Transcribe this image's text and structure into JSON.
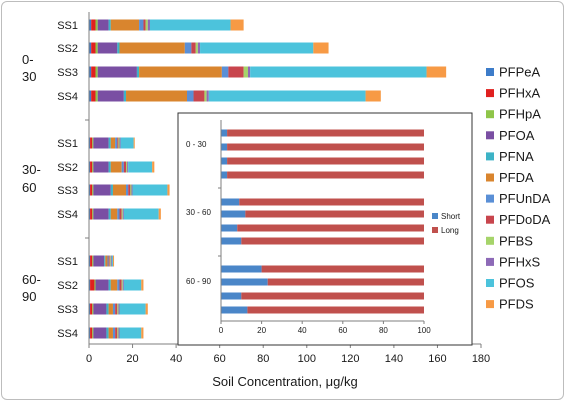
{
  "colors": {
    "PFPeA": "#3d7cc9",
    "PFHxA": "#e0201f",
    "PFHpA": "#8fc549",
    "PFOA": "#7a4fa3",
    "PFNA": "#3db3c6",
    "PFDA": "#d9852e",
    "PFUnDA": "#5a8fd6",
    "PFDoDA": "#c8454d",
    "PFBS": "#a6d46a",
    "PFHxS": "#8d6ab7",
    "PFOS": "#4cc3dc",
    "PFDS": "#f79a45",
    "Short": "#4a86c8",
    "Long": "#c0504d"
  },
  "chart_data": [
    {
      "type": "bar",
      "orientation": "horizontal",
      "stacked": true,
      "xlabel": "Soil Concentration, μg/kg",
      "xlim": [
        0,
        180
      ],
      "xticks": [
        0,
        20,
        40,
        60,
        80,
        100,
        120,
        140,
        160,
        180
      ],
      "grid": false,
      "legend_position": "right",
      "groups": [
        {
          "label": "0-\n30",
          "categories": [
            "SS1",
            "SS2",
            "SS3",
            "SS4"
          ]
        },
        {
          "label": "30-\n60",
          "categories": [
            "SS1",
            "SS2",
            "SS3",
            "SS4"
          ]
        },
        {
          "label": "60-\n90",
          "categories": [
            "SS1",
            "SS2",
            "SS3",
            "SS4"
          ]
        }
      ],
      "series": [
        {
          "name": "PFPeA",
          "values": [
            1,
            1,
            1,
            1,
            0.5,
            0.5,
            0.5,
            0.5,
            0.5,
            0.5,
            0.5,
            0.5
          ]
        },
        {
          "name": "PFHxA",
          "values": [
            2,
            2,
            2,
            2,
            1,
            1,
            1,
            1,
            1,
            2,
            1,
            1
          ]
        },
        {
          "name": "PFHpA",
          "values": [
            1,
            1,
            1,
            1,
            0.5,
            0.5,
            0.5,
            0.5,
            0.5,
            0.5,
            0.5,
            0.5
          ]
        },
        {
          "name": "PFOA",
          "values": [
            5,
            9,
            18,
            12,
            7,
            7,
            8,
            7,
            5,
            6,
            6,
            6
          ]
        },
        {
          "name": "PFNA",
          "values": [
            1,
            1,
            1,
            1,
            1,
            1,
            1,
            1,
            0.5,
            1,
            1,
            1
          ]
        },
        {
          "name": "PFDA",
          "values": [
            13,
            30,
            38,
            28,
            2,
            5,
            6,
            3,
            1,
            3,
            2,
            2
          ]
        },
        {
          "name": "PFUnDA",
          "values": [
            2,
            3,
            3,
            3,
            1,
            1,
            1,
            1,
            0.5,
            1,
            1,
            1
          ]
        },
        {
          "name": "PFDoDA",
          "values": [
            1,
            2,
            7,
            5,
            0.5,
            1,
            1,
            1,
            0.5,
            1,
            1,
            1
          ]
        },
        {
          "name": "PFBS",
          "values": [
            1,
            1,
            2,
            1,
            0.5,
            0.5,
            0.5,
            0.5,
            0.5,
            0.5,
            0.5,
            0.5
          ]
        },
        {
          "name": "PFHxS",
          "values": [
            1,
            1,
            1,
            1,
            0.5,
            0.5,
            0.5,
            0.5,
            0.5,
            0.5,
            0.5,
            0.5
          ]
        },
        {
          "name": "PFOS",
          "values": [
            37,
            52,
            81,
            72,
            6,
            11,
            16,
            16,
            0.5,
            8,
            12,
            10
          ]
        },
        {
          "name": "PFDS",
          "values": [
            6,
            7,
            9,
            7,
            0.5,
            1,
            1,
            1,
            0.5,
            1,
            1,
            1
          ]
        }
      ]
    },
    {
      "type": "bar",
      "orientation": "horizontal",
      "stacked": true,
      "xlim": [
        0,
        100
      ],
      "xticks": [
        0,
        20,
        40,
        60,
        80,
        100
      ],
      "grid": false,
      "legend_position": "right",
      "groups": [
        {
          "label": "0 - 30",
          "categories": [
            "SS1",
            "SS2",
            "SS3",
            "SS4"
          ]
        },
        {
          "label": "30 - 60",
          "categories": [
            "SS1",
            "SS2",
            "SS3",
            "SS4"
          ]
        },
        {
          "label": "60 - 90",
          "categories": [
            "SS1",
            "SS2",
            "SS3",
            "SS4"
          ]
        }
      ],
      "series": [
        {
          "name": "Short",
          "values": [
            3,
            3,
            3,
            3,
            9,
            12,
            8,
            10,
            20,
            23,
            10,
            13
          ]
        },
        {
          "name": "Long",
          "values": [
            97,
            97,
            97,
            97,
            91,
            88,
            92,
            90,
            80,
            77,
            90,
            87
          ]
        }
      ]
    }
  ]
}
